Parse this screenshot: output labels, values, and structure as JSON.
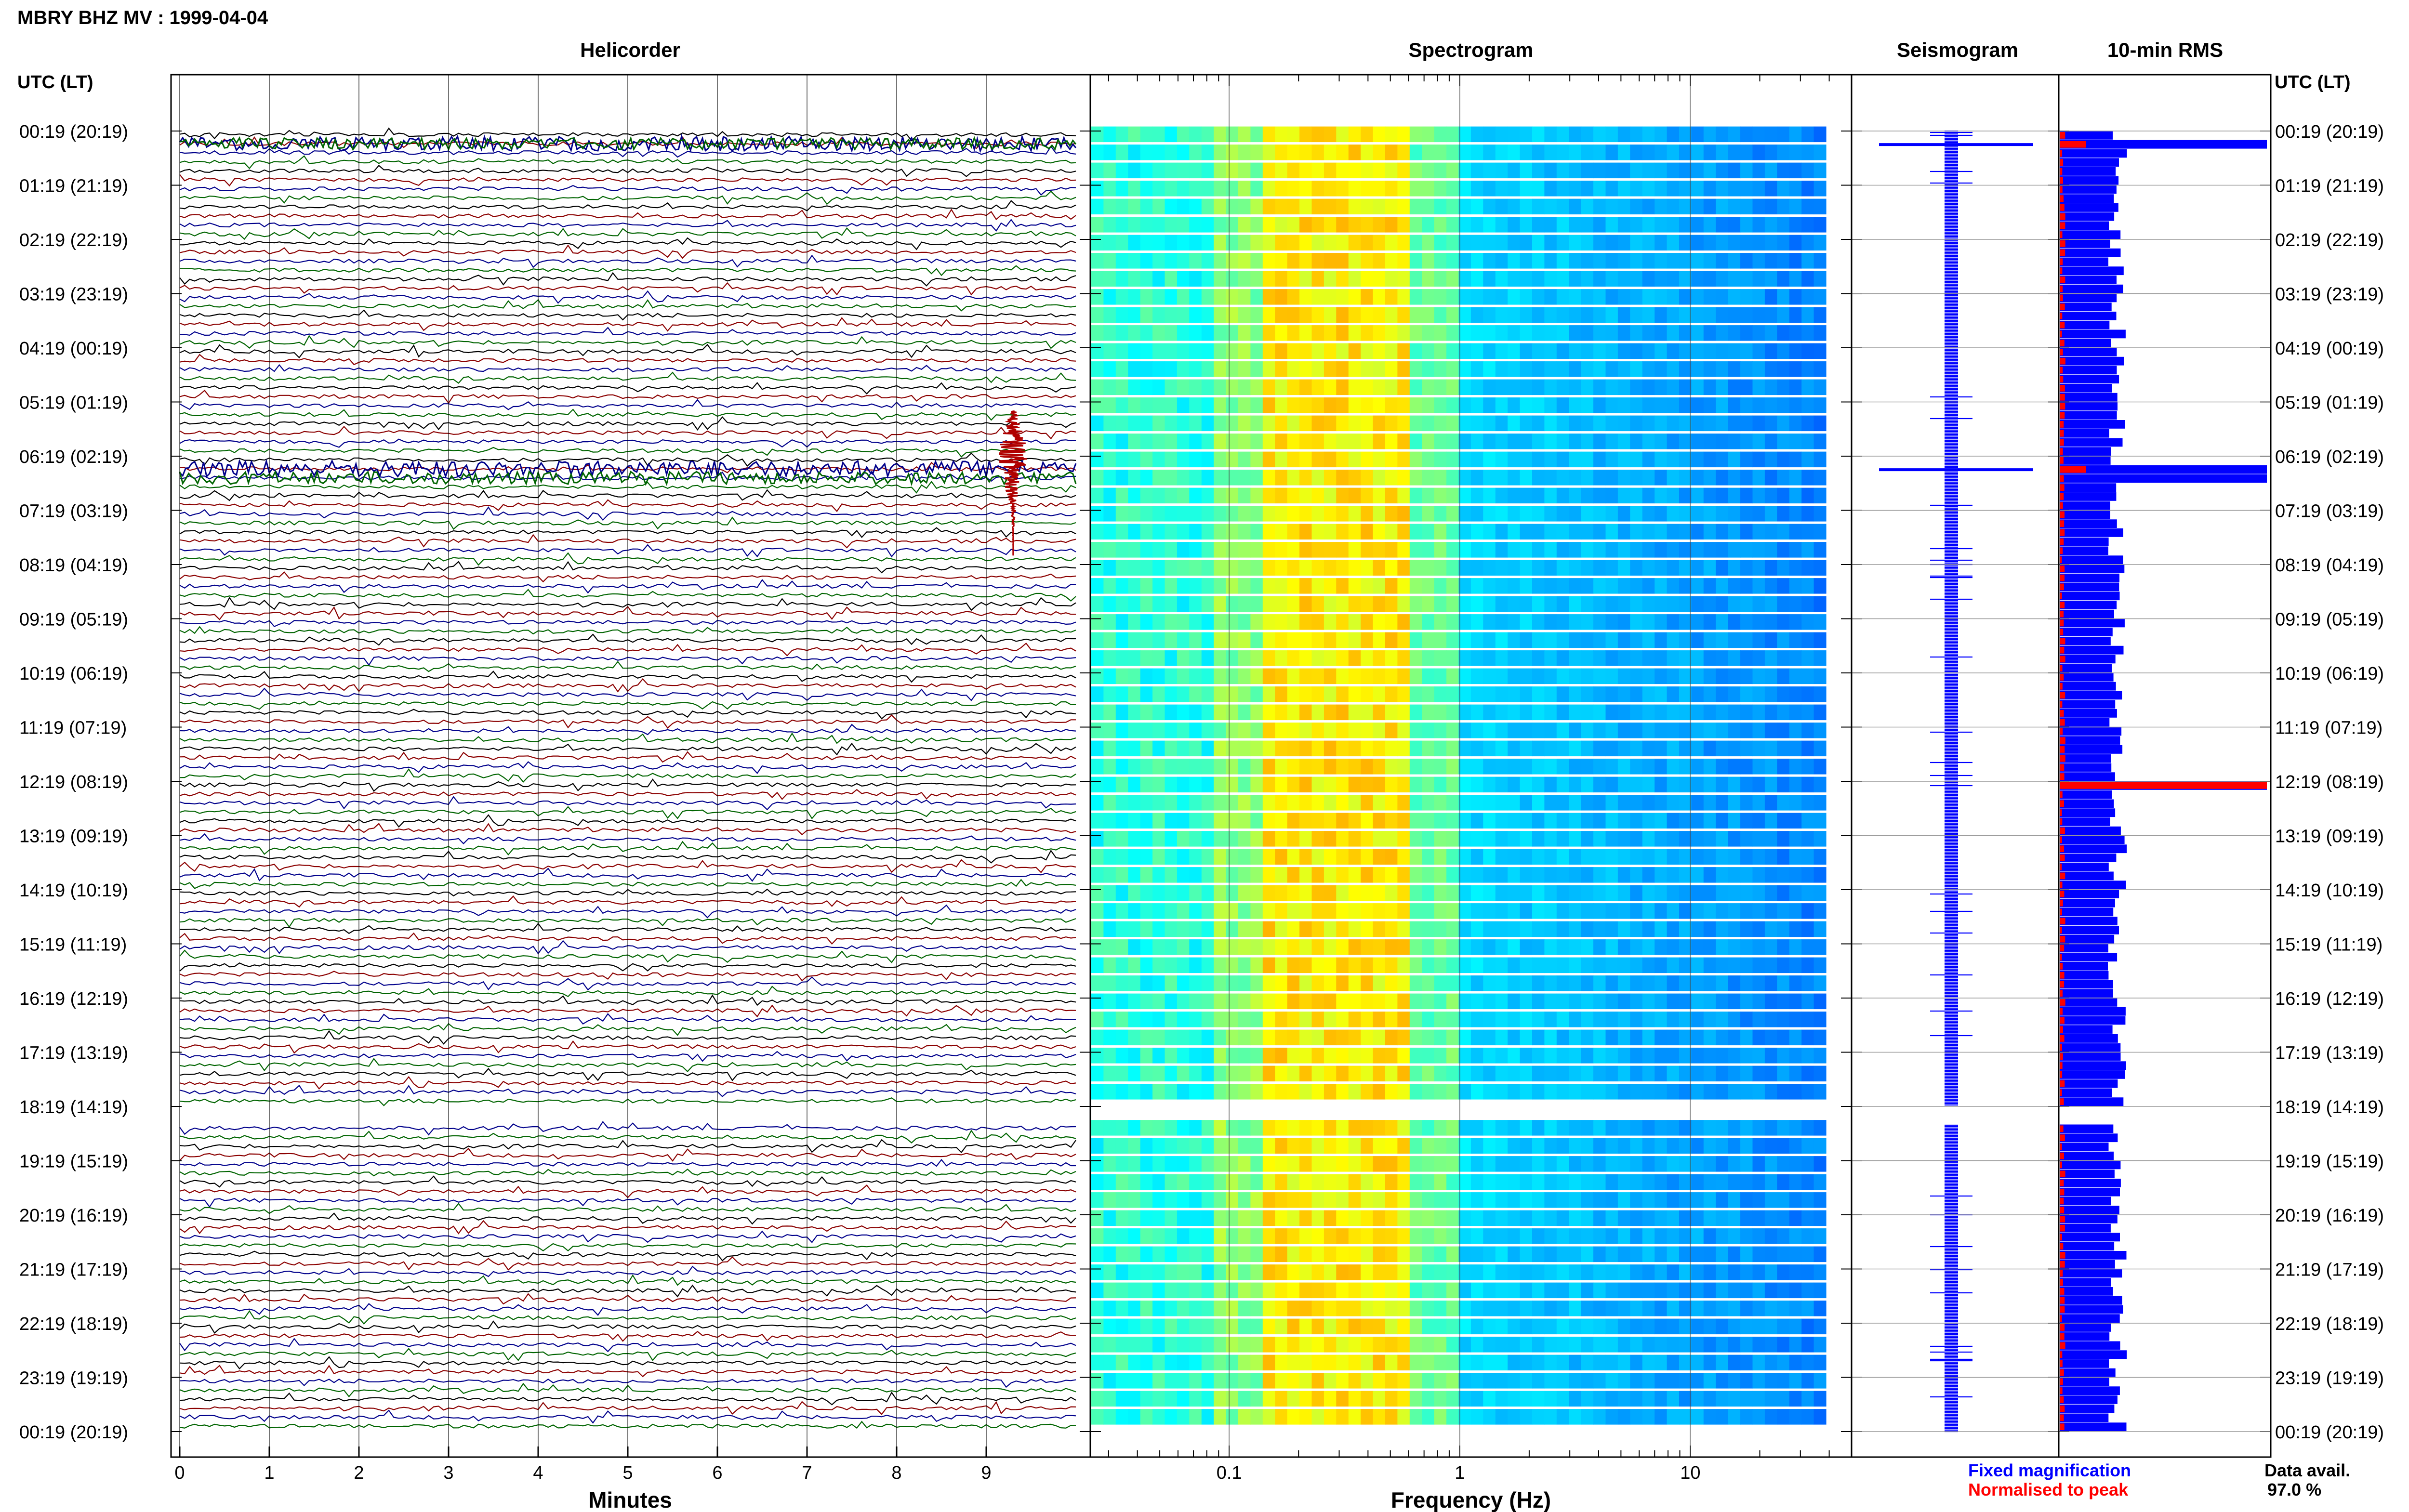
{
  "header": {
    "title": "MBRY BHZ MV : 1999-04-04"
  },
  "panels": {
    "helicorder": "Helicorder",
    "spectrogram": "Spectrogram",
    "seismogram": "Seismogram",
    "rms": "10-min RMS"
  },
  "axis": {
    "time_header": "UTC (LT)",
    "helicorder_xlabel": "Minutes",
    "spectrogram_xlabel": "Frequency (Hz)"
  },
  "legend": {
    "fixed": "Fixed magnification",
    "normalised": "Normalised to peak",
    "data_avail_label": "Data avail.",
    "data_avail_value": "97.0 %"
  },
  "colors": {
    "trace_black": "#000000",
    "trace_red": "#8b0000",
    "trace_blue": "#00008b",
    "trace_green": "#006400",
    "seismogram": "#0000ff",
    "rms_fixed": "#0000ff",
    "rms_normalised": "#ff0000",
    "legend_fixed": "#0000ff",
    "legend_normalised": "#ff0000"
  },
  "chart_data": [
    {
      "type": "line",
      "title": "Helicorder",
      "xlabel": "Minutes",
      "ylabel": "UTC (LT)",
      "x_ticks": [
        0,
        1,
        2,
        3,
        4,
        5,
        6,
        7,
        8,
        9
      ],
      "xlim": [
        0,
        10
      ],
      "y_ticks": [
        "00:19 (20:19)",
        "01:19 (21:19)",
        "02:19 (22:19)",
        "03:19 (23:19)",
        "04:19 (00:19)",
        "05:19 (01:19)",
        "06:19 (02:19)",
        "07:19 (03:19)",
        "08:19 (04:19)",
        "09:19 (05:19)",
        "10:19 (06:19)",
        "11:19 (07:19)",
        "12:19 (08:19)",
        "13:19 (09:19)",
        "14:19 (10:19)",
        "15:19 (11:19)",
        "16:19 (12:19)",
        "17:19 (13:19)",
        "18:19 (14:19)",
        "19:19 (15:19)",
        "20:19 (16:19)",
        "21:19 (17:19)",
        "22:19 (18:19)",
        "23:19 (19:19)",
        "00:19 (20:19)"
      ],
      "rows": 144,
      "row_minutes": 10,
      "grid": true
    },
    {
      "type": "heatmap",
      "title": "Spectrogram",
      "xlabel": "Frequency (Hz)",
      "x_scale": "log",
      "x_ticks": [
        0.1,
        1,
        10
      ],
      "xlim": [
        0.025,
        50
      ],
      "data_gap_utc": [
        "18:19",
        "18:39"
      ]
    },
    {
      "type": "line",
      "title": "Seismogram",
      "data_gap_utc": [
        "18:19",
        "18:39"
      ]
    },
    {
      "type": "bar",
      "title": "10-min RMS",
      "series": [
        {
          "name": "Fixed magnification"
        },
        {
          "name": "Normalised to peak"
        }
      ]
    }
  ]
}
